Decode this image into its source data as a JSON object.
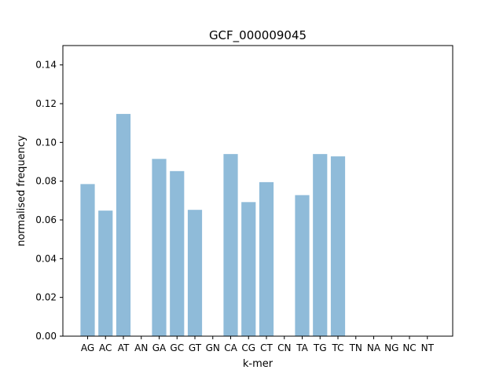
{
  "chart_data": {
    "type": "bar",
    "title": "GCF_000009045",
    "xlabel": "k-mer",
    "ylabel": "normalised frequency",
    "categories": [
      "AG",
      "AC",
      "AT",
      "AN",
      "GA",
      "GC",
      "GT",
      "GN",
      "CA",
      "CG",
      "CT",
      "CN",
      "TA",
      "TG",
      "TC",
      "TN",
      "NA",
      "NG",
      "NC",
      "NT"
    ],
    "values": [
      0.0785,
      0.0648,
      0.1147,
      0,
      0.0915,
      0.0852,
      0.0652,
      0,
      0.094,
      0.0692,
      0.0795,
      0,
      0.0728,
      0.094,
      0.0928,
      0,
      0,
      0,
      0,
      0
    ],
    "ylim": [
      0,
      0.15
    ],
    "yticks": [
      "0.00",
      "0.02",
      "0.04",
      "0.06",
      "0.08",
      "0.10",
      "0.12",
      "0.14"
    ],
    "bar_color": "#8fbbd9",
    "grid": false,
    "legend": "none"
  }
}
